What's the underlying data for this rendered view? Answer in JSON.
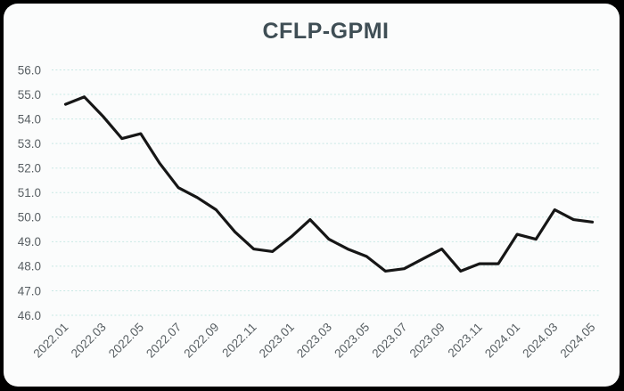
{
  "chart_data": {
    "type": "line",
    "title": "CFLP-GPMI",
    "series_name": "CFLP-GPMI",
    "x": [
      "2022.01",
      "2022.02",
      "2022.03",
      "2022.04",
      "2022.05",
      "2022.06",
      "2022.07",
      "2022.08",
      "2022.09",
      "2022.10",
      "2022.11",
      "2022.12",
      "2023.01",
      "2023.02",
      "2023.03",
      "2023.04",
      "2023.05",
      "2023.06",
      "2023.07",
      "2023.08",
      "2023.09",
      "2023.10",
      "2023.11",
      "2023.12",
      "2024.01",
      "2024.02",
      "2024.03",
      "2024.04",
      "2024.05"
    ],
    "values": [
      54.6,
      54.9,
      54.1,
      53.2,
      53.4,
      52.2,
      51.2,
      50.8,
      50.3,
      49.4,
      48.7,
      48.6,
      49.2,
      49.9,
      49.1,
      48.7,
      48.4,
      47.8,
      47.9,
      48.3,
      48.7,
      47.8,
      48.1,
      48.1,
      49.3,
      49.1,
      50.3,
      49.9,
      49.8
    ],
    "ylim": [
      46.0,
      56.0
    ],
    "y_tick_step": 1.0,
    "y_tick_labels": [
      "56.0",
      "55.0",
      "54.0",
      "53.0",
      "52.0",
      "51.0",
      "50.0",
      "49.0",
      "48.0",
      "47.0",
      "46.0"
    ],
    "x_tick_labels": [
      "2022.01",
      "2022.03",
      "2022.05",
      "2022.07",
      "2022.09",
      "2022.11",
      "2023.01",
      "2023.03",
      "2023.05",
      "2023.07",
      "2023.09",
      "2023.11",
      "2024.01",
      "2024.03",
      "2024.05"
    ],
    "grid": "horizontal-dashed",
    "legend": "none",
    "colors": {
      "line": "#161616",
      "gridline": "#c7e7e4",
      "card_background": "#fbfcfc",
      "page_background": "#000000",
      "title_text": "#3f4e55",
      "tick_text": "#585f63"
    }
  }
}
